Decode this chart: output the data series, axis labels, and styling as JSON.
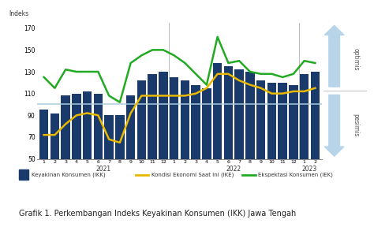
{
  "title_ylabel": "Indeks",
  "ylim": [
    50,
    175
  ],
  "yticks": [
    50,
    70,
    90,
    110,
    130,
    150,
    170
  ],
  "bar_color": "#1a3a6b",
  "line_ike_color": "#e8b800",
  "line_iek_color": "#22aa22",
  "hline_color": "#aaccdd",
  "hline_y": 100,
  "background_color": "#ffffff",
  "optimis_text": "optimis",
  "pesimis_text": "pesimis",
  "caption": "Grafik 1. Perkembangan Indeks Keyakinan Konsumen (IKK) Jawa Tengah",
  "legend_ikk": "Keyakinan Konsumen (IKK)",
  "legend_ike": "Kondisi Ekonomi Saat Ini (IKE)",
  "legend_iek": "Ekspektasi Konsumen (IEK)",
  "x_labels": [
    "1",
    "2",
    "3",
    "4",
    "5",
    "6",
    "7",
    "8",
    "9",
    "10",
    "11",
    "12",
    "1",
    "2",
    "3",
    "4",
    "5",
    "6",
    "7",
    "8",
    "9",
    "10",
    "11",
    "12",
    "1",
    "2"
  ],
  "year_labels": [
    "2021",
    "2022",
    "2023"
  ],
  "ikk_values": [
    95,
    92,
    108,
    110,
    112,
    110,
    90,
    90,
    108,
    122,
    128,
    130,
    125,
    122,
    118,
    115,
    138,
    135,
    132,
    130,
    122,
    120,
    120,
    118,
    128,
    130
  ],
  "ike_values": [
    72,
    72,
    82,
    90,
    92,
    90,
    68,
    65,
    92,
    108,
    108,
    108,
    108,
    108,
    110,
    115,
    128,
    128,
    122,
    118,
    115,
    110,
    110,
    112,
    112,
    115
  ],
  "iek_values": [
    125,
    115,
    132,
    130,
    130,
    130,
    108,
    102,
    138,
    145,
    150,
    150,
    145,
    138,
    128,
    118,
    162,
    138,
    140,
    130,
    128,
    128,
    125,
    128,
    140,
    138
  ]
}
